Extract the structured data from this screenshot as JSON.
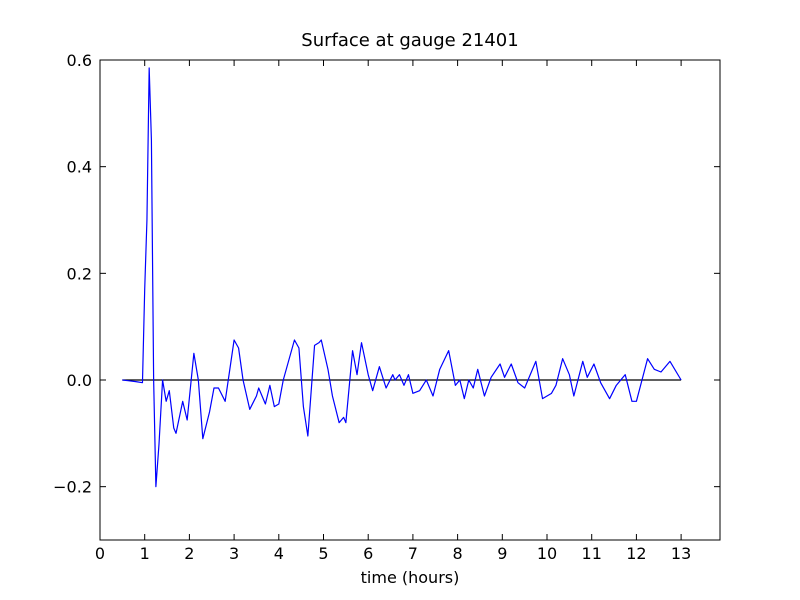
{
  "chart_data": {
    "type": "line",
    "title": "Surface at gauge 21401",
    "x_label": "time (hours)",
    "xlim": [
      0,
      13.87
    ],
    "ylim": [
      -0.3,
      0.6
    ],
    "xticks": [
      0,
      1,
      2,
      3,
      4,
      5,
      6,
      7,
      8,
      9,
      10,
      11,
      12,
      13
    ],
    "yticks": [
      {
        "value": -0.2,
        "label": "−0.2"
      },
      {
        "value": 0,
        "label": "0.0"
      },
      0.2,
      0.4,
      0.6
    ],
    "grid": false,
    "reference_line": {
      "y": 0,
      "x": [
        0.5,
        13
      ],
      "color": "#000000"
    },
    "x": [
      0.5,
      0.8,
      0.95,
      1.0,
      1.05,
      1.1,
      1.15,
      1.2,
      1.25,
      1.32,
      1.4,
      1.48,
      1.55,
      1.65,
      1.7,
      1.85,
      1.95,
      2.1,
      2.2,
      2.3,
      2.45,
      2.55,
      2.65,
      2.8,
      3.0,
      3.1,
      3.2,
      3.35,
      3.5,
      3.55,
      3.7,
      3.8,
      3.9,
      4.0,
      4.1,
      4.35,
      4.45,
      4.55,
      4.65,
      4.8,
      4.9,
      4.95,
      5.1,
      5.2,
      5.35,
      5.45,
      5.5,
      5.65,
      5.75,
      5.85,
      6.0,
      6.1,
      6.25,
      6.4,
      6.55,
      6.6,
      6.7,
      6.8,
      6.9,
      7.0,
      7.15,
      7.3,
      7.45,
      7.6,
      7.8,
      7.95,
      8.05,
      8.15,
      8.25,
      8.35,
      8.45,
      8.6,
      8.75,
      8.95,
      9.05,
      9.2,
      9.35,
      9.5,
      9.65,
      9.75,
      9.9,
      10.1,
      10.2,
      10.35,
      10.5,
      10.6,
      10.8,
      10.9,
      11.05,
      11.2,
      11.4,
      11.55,
      11.75,
      11.9,
      12.0,
      12.25,
      12.4,
      12.55,
      12.75,
      13.0
    ],
    "series": [
      {
        "color": "#0000ff",
        "values": [
          0,
          -0.003,
          -0.005,
          0.17,
          0.3,
          0.585,
          0.45,
          0.0,
          -0.2,
          -0.12,
          0.0,
          -0.04,
          -0.02,
          -0.09,
          -0.1,
          -0.04,
          -0.075,
          0.05,
          0.0,
          -0.11,
          -0.06,
          -0.015,
          -0.015,
          -0.04,
          0.075,
          0.06,
          0.0,
          -0.055,
          -0.03,
          -0.015,
          -0.045,
          -0.01,
          -0.05,
          -0.045,
          0.0,
          0.075,
          0.06,
          -0.05,
          -0.105,
          0.065,
          0.07,
          0.075,
          0.02,
          -0.03,
          -0.08,
          -0.07,
          -0.08,
          0.055,
          0.01,
          0.07,
          0.01,
          -0.02,
          0.025,
          -0.015,
          0.01,
          0.0,
          0.01,
          -0.01,
          0.01,
          -0.025,
          -0.02,
          0.0,
          -0.03,
          0.02,
          0.055,
          -0.01,
          0.0,
          -0.035,
          0.0,
          -0.015,
          0.02,
          -0.03,
          0.005,
          0.03,
          0.005,
          0.03,
          -0.005,
          -0.015,
          0.015,
          0.035,
          -0.035,
          -0.025,
          -0.01,
          0.04,
          0.01,
          -0.03,
          0.035,
          0.005,
          0.03,
          -0.005,
          -0.035,
          -0.01,
          0.01,
          -0.04,
          -0.04,
          0.04,
          0.02,
          0.015,
          0.035,
          0
        ]
      }
    ]
  }
}
